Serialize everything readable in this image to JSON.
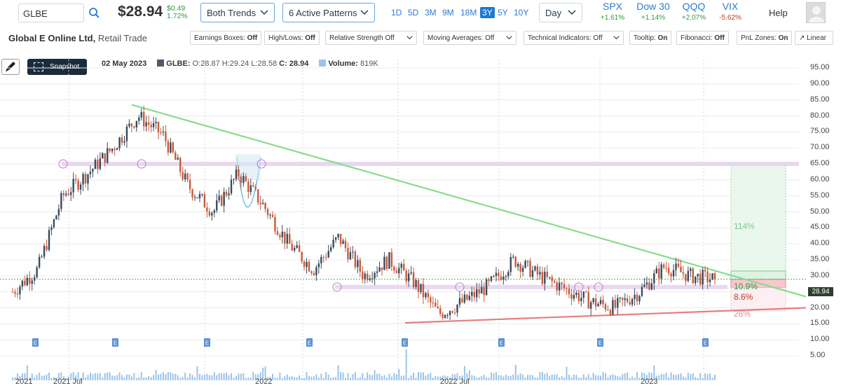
{
  "header": {
    "ticker": "GLBE",
    "price": "$28.94",
    "change_abs": "$0.49",
    "change_pct": "1.72%",
    "trends_dropdown": "Both Trends",
    "patterns_dropdown": "6 Active Patterns",
    "timeframes": [
      "1D",
      "5D",
      "3M",
      "9M",
      "18M",
      "3Y",
      "5Y",
      "10Y"
    ],
    "active_timeframe": "3Y",
    "interval_dropdown": "Day",
    "indices": [
      {
        "name": "SPX",
        "pct": "+1.61%",
        "color": "#2e9c43"
      },
      {
        "name": "Dow 30",
        "pct": "+1.14%",
        "color": "#2e9c43"
      },
      {
        "name": "QQQ",
        "pct": "+2.07%",
        "color": "#2e9c43"
      },
      {
        "name": "VIX",
        "pct": "-5.62%",
        "color": "#c0392b"
      }
    ],
    "help": "Help"
  },
  "toolbar": {
    "company_name": "Global E Online Ltd,",
    "sector": " Retail Trade",
    "toggles": [
      {
        "label": "Earnings Boxes:",
        "value": "Off"
      },
      {
        "label": "High/Lows:",
        "value": "Off"
      },
      {
        "label": "Relative Strength Off",
        "value": ""
      },
      {
        "label": "Moving Averages: Off",
        "value": ""
      },
      {
        "label": "Technical Indicators: Off",
        "value": ""
      },
      {
        "label": "Tooltip:",
        "value": "On"
      },
      {
        "label": "Fibonacci:",
        "value": "Off"
      },
      {
        "label": "PnL Zones:",
        "value": "On"
      },
      {
        "label": "Linear",
        "value": ""
      }
    ]
  },
  "info": {
    "snapshot": "Snapshot",
    "date": "02 May 2023",
    "symbol": "GLBE:",
    "ohlc": "O:28.87 H:29.24 L:28.58",
    "close": "C: 28.94",
    "volume_label": "Volume:",
    "volume": "819K"
  },
  "chart_data": {
    "type": "line",
    "title": "",
    "y_ticks": [
      "95.00",
      "90.00",
      "85.00",
      "80.00",
      "75.00",
      "70.00",
      "65.00",
      "60.00",
      "55.00",
      "50.00",
      "45.00",
      "40.00",
      "35.00",
      "30.00",
      "25.00",
      "20.00",
      "15.00",
      "10.00",
      "5.00"
    ],
    "x_ticks": [
      "2021",
      "2021 Jul",
      "2022",
      "2022 Jul",
      "2023"
    ],
    "ylim": [
      5,
      95
    ],
    "last_price": "28.94",
    "close_path": [
      [
        "2021-05",
        25
      ],
      [
        "2021-06",
        32
      ],
      [
        "2021-07",
        55
      ],
      [
        "2021-08",
        62
      ],
      [
        "2021-09",
        70
      ],
      [
        "2021-09b",
        80
      ],
      [
        "2021-10",
        74
      ],
      [
        "2021-11",
        58
      ],
      [
        "2021-11b",
        50
      ],
      [
        "2021-12",
        62
      ],
      [
        "2021-12b",
        52
      ],
      [
        "2022-01",
        40
      ],
      [
        "2022-02",
        32
      ],
      [
        "2022-03",
        42
      ],
      [
        "2022-03b",
        30
      ],
      [
        "2022-04",
        35
      ],
      [
        "2022-05",
        28
      ],
      [
        "2022-06",
        18
      ],
      [
        "2022-07",
        22
      ],
      [
        "2022-08",
        27
      ],
      [
        "2022-09",
        35
      ],
      [
        "2022-10",
        30
      ],
      [
        "2022-11",
        26
      ],
      [
        "2022-12",
        22
      ],
      [
        "2023-01",
        20
      ],
      [
        "2023-02",
        25
      ],
      [
        "2023-03",
        33
      ],
      [
        "2023-04",
        30
      ],
      [
        "2023-05",
        28.94
      ]
    ],
    "zones": [
      {
        "label": "114%",
        "color": "#7dc98a"
      },
      {
        "label": "10.9%",
        "color": "#2e9c43"
      },
      {
        "label": "8.6%",
        "color": "#c0392b"
      },
      {
        "label": "26%",
        "color": "#e08a9a"
      }
    ],
    "earnings_marker": "E",
    "resistance_level": 65,
    "support_level": 26.5,
    "grid": true
  }
}
